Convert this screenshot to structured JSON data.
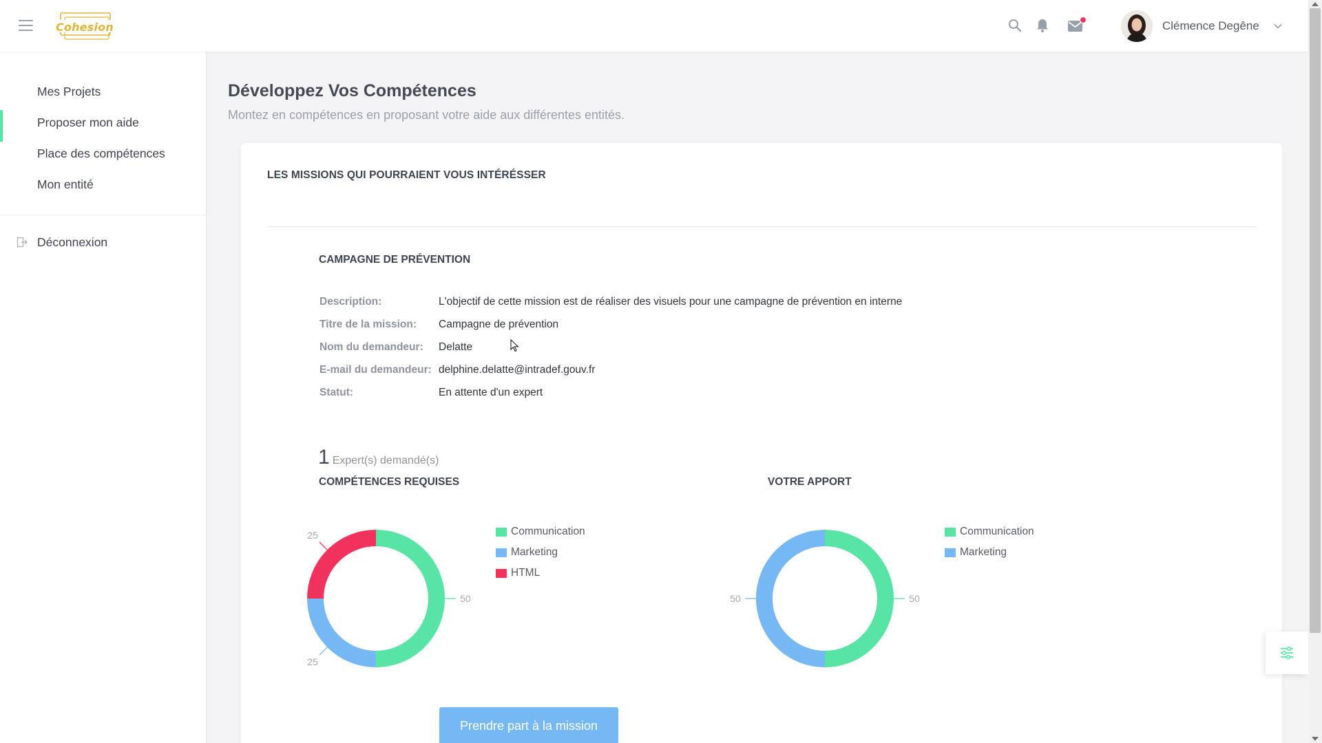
{
  "header": {
    "logo_text": "Cohesion",
    "user_name": "Clémence Degêne",
    "icons": [
      "menu-icon",
      "search-icon",
      "bell-icon",
      "mail-icon",
      "chevron-down-icon"
    ],
    "notification_dot_color": "#f0325d"
  },
  "sidebar": {
    "items": [
      {
        "label": "Mes Projets",
        "active": false
      },
      {
        "label": "Proposer mon aide",
        "active": true
      },
      {
        "label": "Place des compétences",
        "active": false
      },
      {
        "label": "Mon entité",
        "active": false
      }
    ],
    "logout_label": "Déconnexion",
    "accent_color": "#57e4a4"
  },
  "page": {
    "title": "Développez Vos Compétences",
    "subtitle": "Montez en compétences en proposant votre aide aux différentes entités."
  },
  "card": {
    "title": "LES MISSIONS QUI POURRAIENT VOUS INTÉRÉSSER",
    "mission": {
      "heading": "CAMPAGNE DE PRÉVENTION",
      "fields": [
        {
          "label": "Description:",
          "value": "L'objectif de cette mission est de réaliser des visuels pour une campagne de prévention en interne"
        },
        {
          "label": "Titre de la mission:",
          "value": "Campagne de prévention"
        },
        {
          "label": "Nom du demandeur:",
          "value": "Delatte"
        },
        {
          "label": "E-mail du demandeur:",
          "value": "delphine.delatte@intradef.gouv.fr"
        },
        {
          "label": "Statut:",
          "value": "En attente d'un expert"
        }
      ],
      "experts_count": "1",
      "experts_label": "Expert(s) demandé(s)",
      "cta_label": "Prendre part à la mission"
    }
  },
  "chart_data": [
    {
      "type": "pie",
      "title": "COMPÉTENCES REQUISES",
      "donut": true,
      "legend": "right",
      "labels": [
        "Communication",
        "Marketing",
        "HTML"
      ],
      "values": [
        50,
        25,
        25
      ],
      "colors": [
        "#57e4a4",
        "#76b8f4",
        "#f0325d"
      ]
    },
    {
      "type": "pie",
      "title": "VOTRE APPORT",
      "donut": true,
      "legend": "right",
      "labels": [
        "Communication",
        "Marketing"
      ],
      "values": [
        50,
        50
      ],
      "colors": [
        "#57e4a4",
        "#76b8f4"
      ]
    }
  ]
}
